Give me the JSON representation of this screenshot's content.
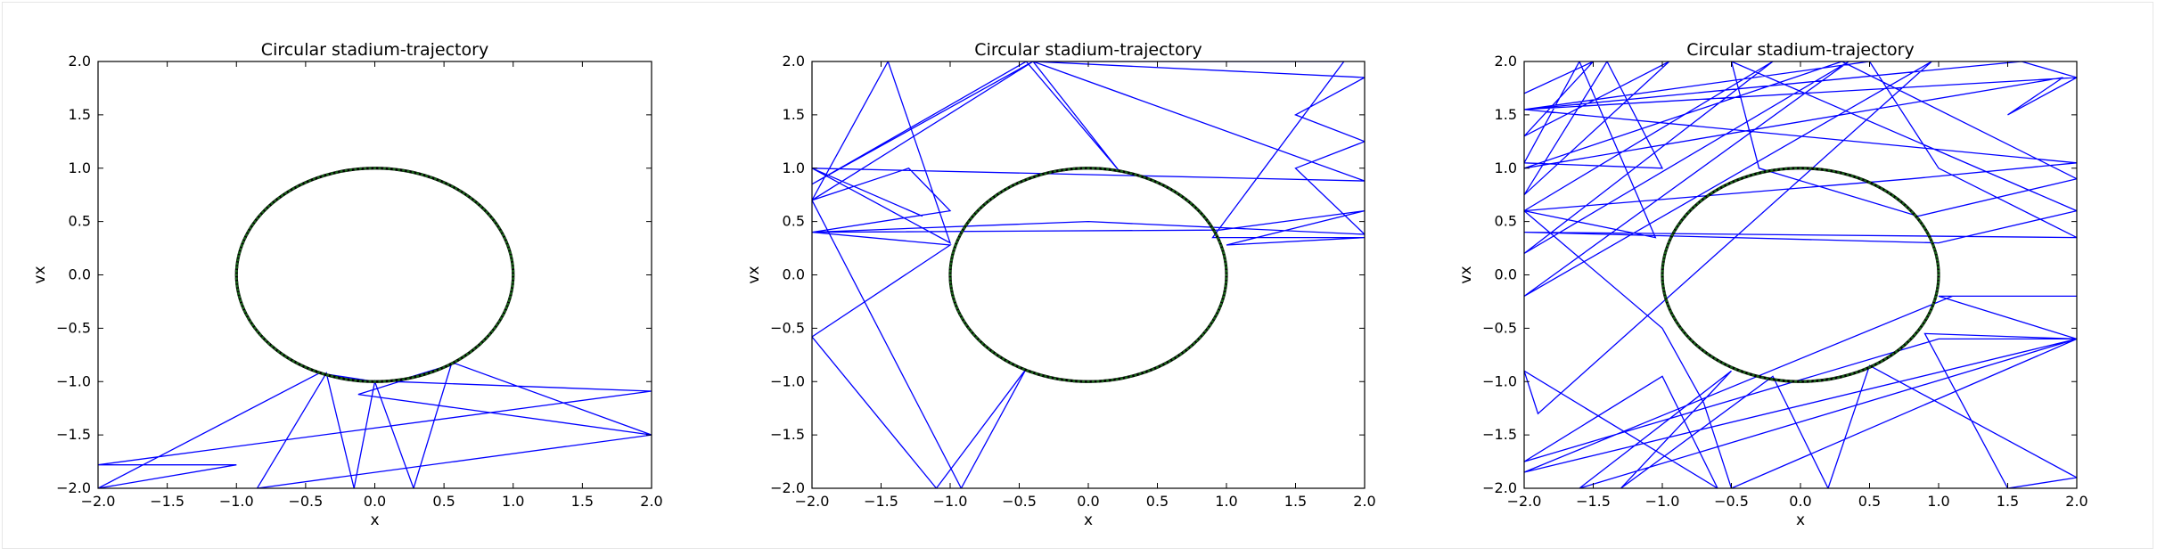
{
  "chart_data": [
    {
      "type": "line",
      "title": "Circular stadium-trajectory",
      "xlabel": "x",
      "ylabel": "vx",
      "xlim": [
        -2.0,
        2.0
      ],
      "ylim": [
        -2.0,
        2.0
      ],
      "xticks": [
        "−2.0",
        "−1.5",
        "−1.0",
        "−0.5",
        "0.0",
        "0.5",
        "1.0",
        "1.5",
        "2.0"
      ],
      "yticks": [
        "−2.0",
        "−1.5",
        "−1.0",
        "−0.5",
        "0.0",
        "0.5",
        "1.0",
        "1.5",
        "2.0"
      ],
      "grid": false,
      "series": [
        {
          "role": "circle-boundary",
          "color": "#1a5e1a",
          "radius": 1.0
        },
        {
          "role": "trajectory",
          "color": "#0000ff",
          "points": [
            [
              0.0,
              -1.0
            ],
            [
              -0.4,
              -0.92
            ],
            [
              -2.0,
              -2.0
            ],
            [
              -1.0,
              -1.78
            ],
            [
              -2.0,
              -1.78
            ],
            [
              2.0,
              -1.09
            ],
            [
              0.15,
              -1.0
            ],
            [
              0.58,
              -0.83
            ],
            [
              2.0,
              -1.5
            ],
            [
              -0.85,
              -2.0
            ],
            [
              -0.35,
              -0.92
            ],
            [
              -0.15,
              -2.0
            ],
            [
              0.0,
              -1.0
            ],
            [
              0.28,
              -2.0
            ],
            [
              0.55,
              -0.85
            ],
            [
              -0.12,
              -1.12
            ],
            [
              2.0,
              -1.5
            ]
          ]
        }
      ]
    },
    {
      "type": "line",
      "title": "Circular stadium-trajectory",
      "xlabel": "x",
      "ylabel": "vx",
      "xlim": [
        -2.0,
        2.0
      ],
      "ylim": [
        -2.0,
        2.0
      ],
      "xticks": [
        "−2.0",
        "−1.5",
        "−1.0",
        "−0.5",
        "0.0",
        "0.5",
        "1.0",
        "1.5",
        "2.0"
      ],
      "yticks": [
        "−2.0",
        "−1.5",
        "−1.0",
        "−0.5",
        "0.0",
        "0.5",
        "1.0",
        "1.5",
        "2.0"
      ],
      "grid": false,
      "series": [
        {
          "role": "circle-boundary",
          "color": "#1a5e1a",
          "radius": 1.0
        },
        {
          "role": "trajectory",
          "color": "#0000ff",
          "points": [
            [
              -1.2,
              0.55
            ],
            [
              -2.0,
              1.0
            ],
            [
              -1.0,
              0.3
            ],
            [
              -1.45,
              2.0
            ],
            [
              -2.0,
              0.7
            ],
            [
              -0.4,
              2.0
            ],
            [
              -2.0,
              0.85
            ],
            [
              -0.45,
              2.0
            ],
            [
              0.22,
              0.98
            ],
            [
              -0.4,
              2.0
            ],
            [
              1.85,
              2.0
            ],
            [
              0.9,
              0.35
            ],
            [
              2.0,
              0.35
            ],
            [
              1.0,
              0.28
            ],
            [
              2.0,
              0.6
            ],
            [
              0.95,
              0.42
            ],
            [
              -2.0,
              0.4
            ],
            [
              -1.0,
              0.28
            ],
            [
              -2.0,
              -0.58
            ],
            [
              -1.1,
              -2.0
            ],
            [
              -0.45,
              -0.88
            ],
            [
              -0.92,
              -2.0
            ],
            [
              -2.0,
              0.7
            ],
            [
              -1.3,
              1.0
            ],
            [
              -1.0,
              0.6
            ],
            [
              -2.0,
              0.4
            ],
            [
              0.0,
              0.5
            ],
            [
              2.0,
              0.38
            ],
            [
              1.5,
              1.0
            ],
            [
              2.0,
              1.25
            ],
            [
              1.5,
              1.5
            ],
            [
              2.0,
              1.85
            ],
            [
              -0.4,
              2.0
            ],
            [
              2.0,
              0.88
            ],
            [
              -2.0,
              1.0
            ]
          ]
        }
      ]
    },
    {
      "type": "line",
      "title": "Circular stadium-trajectory",
      "xlabel": "x",
      "ylabel": "vx",
      "xlim": [
        -2.0,
        2.0
      ],
      "ylim": [
        -2.0,
        2.0
      ],
      "xticks": [
        "−2.0",
        "−1.5",
        "−1.0",
        "−0.5",
        "0.0",
        "0.5",
        "1.0",
        "1.5",
        "2.0"
      ],
      "yticks": [
        "−2.0",
        "−1.5",
        "−1.0",
        "−0.5",
        "0.0",
        "0.5",
        "1.0",
        "1.5",
        "2.0"
      ],
      "grid": false,
      "series": [
        {
          "role": "circle-boundary",
          "color": "#1a5e1a",
          "radius": 1.0
        },
        {
          "role": "trajectory",
          "color": "#0000ff",
          "points": [
            [
              -2.0,
              1.7
            ],
            [
              -1.5,
              2.0
            ],
            [
              -2.0,
              1.3
            ],
            [
              -0.95,
              2.0
            ],
            [
              -2.0,
              0.75
            ],
            [
              -1.4,
              2.0
            ],
            [
              -1.0,
              1.0
            ],
            [
              -2.0,
              1.05
            ],
            [
              -1.6,
              2.0
            ],
            [
              -1.05,
              0.35
            ],
            [
              -2.0,
              0.6
            ],
            [
              -0.2,
              2.0
            ],
            [
              -2.0,
              0.2
            ],
            [
              0.35,
              2.0
            ],
            [
              -2.0,
              -0.2
            ],
            [
              0.95,
              2.0
            ],
            [
              -1.9,
              -1.3
            ],
            [
              -2.0,
              -0.9
            ],
            [
              -0.6,
              -2.0
            ],
            [
              -1.0,
              -0.95
            ],
            [
              -2.0,
              -1.75
            ],
            [
              1.0,
              -0.6
            ],
            [
              2.0,
              -0.6
            ],
            [
              -2.0,
              -1.85
            ],
            [
              1.1,
              -0.2
            ],
            [
              2.0,
              -0.2
            ],
            [
              1.0,
              -0.2
            ],
            [
              2.0,
              -0.6
            ],
            [
              -1.6,
              -2.0
            ],
            [
              -0.5,
              -0.9
            ],
            [
              -1.3,
              -2.0
            ],
            [
              -0.2,
              -0.95
            ],
            [
              0.2,
              -2.0
            ],
            [
              0.5,
              -0.85
            ],
            [
              2.0,
              -1.9
            ],
            [
              1.5,
              -2.0
            ],
            [
              0.9,
              -0.55
            ],
            [
              2.0,
              -0.6
            ],
            [
              -0.5,
              -2.0
            ],
            [
              -0.7,
              -1.2
            ],
            [
              -1.0,
              -0.5
            ],
            [
              -2.0,
              0.6
            ],
            [
              0.8,
              0.9
            ],
            [
              2.0,
              1.05
            ],
            [
              -2.0,
              1.55
            ],
            [
              1.6,
              2.0
            ],
            [
              2.0,
              1.85
            ],
            [
              -2.0,
              1.55
            ],
            [
              0.5,
              2.0
            ],
            [
              1.0,
              1.0
            ],
            [
              2.0,
              0.35
            ],
            [
              -2.0,
              0.4
            ],
            [
              1.0,
              0.3
            ],
            [
              2.0,
              0.6
            ],
            [
              -0.5,
              2.0
            ],
            [
              -0.3,
              1.0
            ],
            [
              0.85,
              0.55
            ],
            [
              2.0,
              0.9
            ],
            [
              0.3,
              2.0
            ],
            [
              -2.0,
              1.0
            ],
            [
              1.9,
              1.85
            ],
            [
              1.5,
              1.5
            ],
            [
              2.0,
              1.85
            ]
          ]
        }
      ]
    }
  ]
}
